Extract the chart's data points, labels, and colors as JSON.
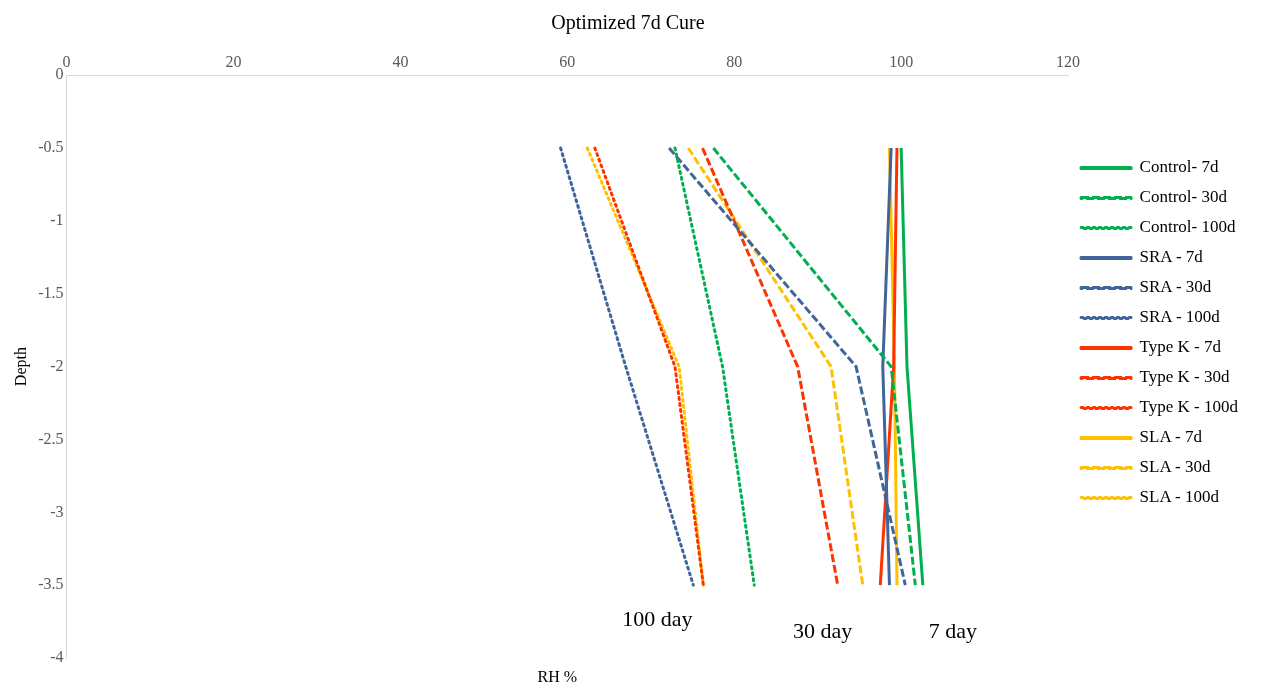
{
  "chart_data": {
    "type": "line",
    "title": "Optimized 7d Cure",
    "xlabel": "RH %",
    "ylabel": "Depth",
    "xlim": [
      0,
      120
    ],
    "xticks": [
      0,
      20,
      40,
      60,
      80,
      100,
      120
    ],
    "ylim": [
      -4,
      0
    ],
    "yticks": [
      0,
      -0.5,
      -1,
      -1.5,
      -2,
      -2.5,
      -3,
      -3.5,
      -4
    ],
    "grid": false,
    "legend": "right",
    "marker": "none",
    "series": [
      {
        "name": "Control- 7d",
        "color": "#00b050",
        "line_style": "solid",
        "x": [
          100,
          100.7,
          102.6
        ],
        "values": [
          -0.5,
          -2,
          -3.5
        ]
      },
      {
        "name": "Control- 30d",
        "color": "#00b050",
        "line_style": "dashed",
        "x": [
          77.5,
          98.8,
          101.7
        ],
        "values": [
          -0.5,
          -2,
          -3.5
        ]
      },
      {
        "name": "Control- 100d",
        "color": "#00b050",
        "line_style": "dotted",
        "x": [
          72.9,
          78.6,
          82.4
        ],
        "values": [
          -0.5,
          -2,
          -3.5
        ]
      },
      {
        "name": "SRA - 7d",
        "color": "#41659a",
        "line_style": "solid",
        "x": [
          98.8,
          97.8,
          98.6
        ],
        "values": [
          -0.5,
          -2,
          -3.5
        ]
      },
      {
        "name": "SRA - 30d",
        "color": "#41659a",
        "line_style": "dashed",
        "x": [
          72.2,
          94.6,
          100.5
        ],
        "values": [
          -0.5,
          -2,
          -3.5
        ]
      },
      {
        "name": "SRA - 100d",
        "color": "#41659a",
        "line_style": "dotted",
        "x": [
          59.2,
          67,
          75.1
        ],
        "values": [
          -0.5,
          -2,
          -3.5
        ]
      },
      {
        "name": "Type K - 7d",
        "color": "#ff3300",
        "line_style": "solid",
        "x": [
          99.5,
          99.1,
          97.5
        ],
        "values": [
          -0.5,
          -2,
          -3.5
        ]
      },
      {
        "name": "Type K - 30d",
        "color": "#ff3300",
        "line_style": "dashed",
        "x": [
          76.2,
          87.6,
          92.4
        ],
        "values": [
          -0.5,
          -2,
          -3.5
        ]
      },
      {
        "name": "Type K - 100d",
        "color": "#ff3300",
        "line_style": "dotted",
        "x": [
          63.3,
          72.9,
          76.3
        ],
        "values": [
          -0.5,
          -2,
          -3.5
        ]
      },
      {
        "name": "SLA - 7d",
        "color": "#ffc000",
        "line_style": "solid",
        "x": [
          98.6,
          99.2,
          99.5
        ],
        "values": [
          -0.5,
          -2,
          -3.5
        ]
      },
      {
        "name": "SLA - 30d",
        "color": "#ffc000",
        "line_style": "dashed",
        "x": [
          74.5,
          91.6,
          95.4
        ],
        "values": [
          -0.5,
          -2,
          -3.5
        ]
      },
      {
        "name": "SLA - 100d",
        "color": "#ffc000",
        "line_style": "dotted",
        "x": [
          62.4,
          73.4,
          76.3
        ],
        "values": [
          -0.5,
          -2,
          -3.5
        ]
      }
    ],
    "annotations": [
      "100 day",
      "30 day",
      "7 day"
    ]
  }
}
